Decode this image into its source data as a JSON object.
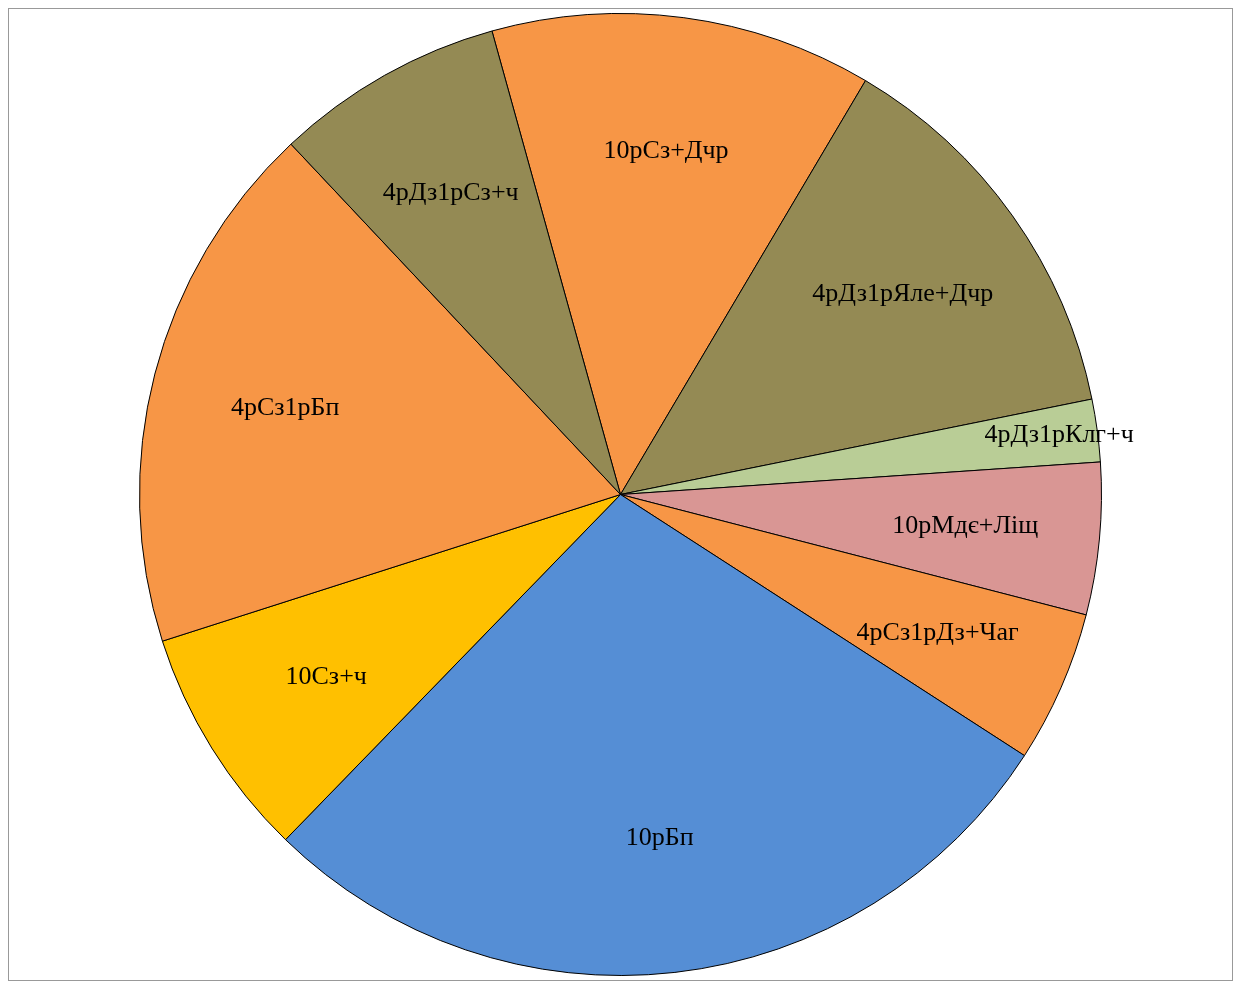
{
  "chart_data": {
    "type": "pie",
    "categories": [
      "10рСз+Дчр",
      "4рДз1рЯле+Дчр",
      "4рДз1рКлг+ч",
      "10рМдє+Ліщ",
      "4рСз1рДз+Чаг",
      "10рБп",
      "10Сз+ч",
      "4рСз1рБп",
      "4рДз1рСз+ч"
    ],
    "values": [
      12.8,
      13.3,
      2.1,
      5.1,
      5.1,
      28.1,
      7.8,
      17.9,
      7.7
    ],
    "colors": [
      "#f79646",
      "#948a54",
      "#b9cd96",
      "#d99694",
      "#f79646",
      "#558ed5",
      "#ffc000",
      "#f79646",
      "#948a54"
    ],
    "legend": false
  }
}
